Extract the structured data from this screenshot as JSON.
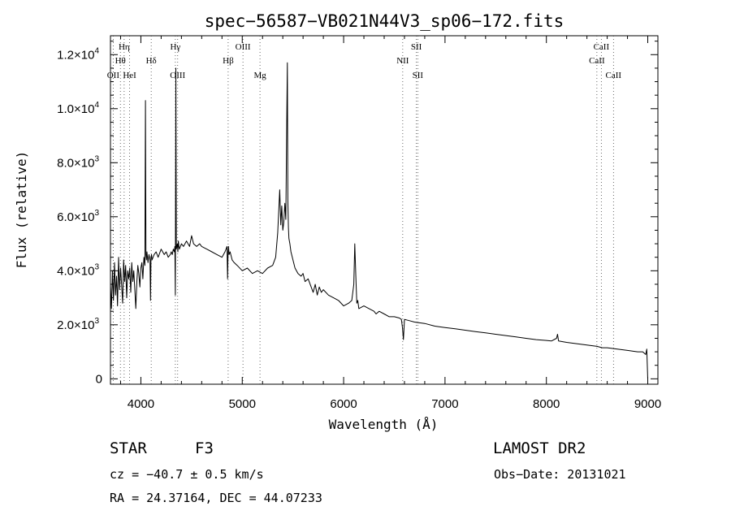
{
  "chart_data": {
    "type": "line",
    "title": "spec−56587−VB021N44V3_sp06−172.fits",
    "xlabel": "Wavelength (Å)",
    "ylabel": "Flux (relative)",
    "xlim": [
      3700,
      9100
    ],
    "ylim": [
      -200,
      12700
    ],
    "x_ticks": [
      4000,
      5000,
      6000,
      7000,
      8000,
      9000
    ],
    "y_ticks": [
      {
        "value": 0,
        "mant": "0",
        "exp": ""
      },
      {
        "value": 2000,
        "mant": "2.0×10",
        "exp": "3"
      },
      {
        "value": 4000,
        "mant": "4.0×10",
        "exp": "3"
      },
      {
        "value": 6000,
        "mant": "6.0×10",
        "exp": "3"
      },
      {
        "value": 8000,
        "mant": "8.0×10",
        "exp": "3"
      },
      {
        "value": 10000,
        "mant": "1.0×10",
        "exp": "4"
      },
      {
        "value": 12000,
        "mant": "1.2×10",
        "exp": "4"
      }
    ],
    "grid": false,
    "spectral_lines": [
      {
        "name": "OII",
        "x": 3727,
        "row": 3
      },
      {
        "name": "Hη",
        "x": 3835,
        "row": 1
      },
      {
        "name": "Hθ",
        "x": 3798,
        "row": 2
      },
      {
        "name": "HeI",
        "x": 3889,
        "row": 3
      },
      {
        "name": "Hδ",
        "x": 4102,
        "row": 2
      },
      {
        "name": "Hγ",
        "x": 4340,
        "row": 1
      },
      {
        "name": "OIII",
        "x": 4363,
        "row": 3
      },
      {
        "name": "Hβ",
        "x": 4861,
        "row": 2
      },
      {
        "name": "OIII",
        "x": 5007,
        "row": 1
      },
      {
        "name": "Mg",
        "x": 5175,
        "row": 3
      },
      {
        "name": "SII",
        "x": 6717,
        "row": 1
      },
      {
        "name": "NII",
        "x": 6583,
        "row": 2
      },
      {
        "name": "SII",
        "x": 6731,
        "row": 3
      },
      {
        "name": "CaII",
        "x": 8542,
        "row": 1
      },
      {
        "name": "CaII",
        "x": 8498,
        "row": 2
      },
      {
        "name": "CaII",
        "x": 8662,
        "row": 3
      }
    ],
    "series": [
      {
        "x": [
          3700,
          3710,
          3720,
          3730,
          3740,
          3750,
          3760,
          3770,
          3780,
          3790,
          3800,
          3810,
          3820,
          3830,
          3840,
          3850,
          3860,
          3870,
          3880,
          3890,
          3900,
          3910,
          3920,
          3930,
          3940,
          3950,
          3960,
          3970,
          3980,
          3990,
          4000,
          4010,
          4020,
          4030,
          4040,
          4045,
          4050,
          4055,
          4060,
          4070,
          4080,
          4090,
          4095,
          4100,
          4105,
          4110,
          4130,
          4150,
          4170,
          4200,
          4230,
          4250,
          4270,
          4290,
          4300,
          4310,
          4320,
          4330,
          4335,
          4340,
          4345,
          4350,
          4360,
          4365,
          4370,
          4375,
          4380,
          4400,
          4420,
          4450,
          4480,
          4500,
          4520,
          4550,
          4580,
          4600,
          4650,
          4700,
          4750,
          4800,
          4830,
          4850,
          4855,
          4860,
          4865,
          4870,
          4880,
          4900,
          4920,
          4950,
          5000,
          5050,
          5100,
          5150,
          5200,
          5250,
          5300,
          5330,
          5350,
          5370,
          5380,
          5390,
          5400,
          5410,
          5420,
          5430,
          5440,
          5445,
          5450,
          5455,
          5460,
          5470,
          5480,
          5500,
          5520,
          5550,
          5580,
          5600,
          5620,
          5650,
          5680,
          5700,
          5720,
          5740,
          5760,
          5780,
          5800,
          5850,
          5900,
          5950,
          6000,
          6050,
          6080,
          6100,
          6110,
          6120,
          6125,
          6130,
          6140,
          6150,
          6200,
          6250,
          6300,
          6320,
          6350,
          6400,
          6450,
          6500,
          6550,
          6570,
          6580,
          6590,
          6600,
          6650,
          6700,
          6800,
          6900,
          7000,
          7100,
          7200,
          7300,
          7400,
          7500,
          7600,
          7700,
          7800,
          7900,
          8000,
          8050,
          8100,
          8110,
          8120,
          8200,
          8300,
          8400,
          8500,
          8550,
          8600,
          8700,
          8800,
          8900,
          8950,
          8980,
          8990,
          9000
        ],
        "y": [
          3500,
          2600,
          4000,
          2900,
          4300,
          3100,
          3800,
          2700,
          4500,
          3300,
          4100,
          3500,
          2800,
          4400,
          3600,
          4200,
          3000,
          4000,
          3700,
          4100,
          3200,
          4300,
          3600,
          4000,
          3300,
          2600,
          3600,
          4200,
          3900,
          3400,
          4100,
          4300,
          3700,
          4500,
          4200,
          10300,
          4600,
          4400,
          4700,
          4300,
          4600,
          4400,
          2900,
          4500,
          4600,
          4400,
          4600,
          4700,
          4500,
          4800,
          4600,
          4700,
          4500,
          4600,
          4700,
          4600,
          4800,
          4700,
          4900,
          3100,
          11500,
          4800,
          5000,
          4700,
          5100,
          4900,
          4800,
          5000,
          4900,
          5100,
          4900,
          5300,
          5000,
          4900,
          5000,
          4900,
          4800,
          4700,
          4600,
          4500,
          4700,
          4900,
          3700,
          4700,
          4900,
          4600,
          4700,
          4400,
          4300,
          4200,
          4000,
          4100,
          3900,
          4000,
          3900,
          4100,
          4200,
          4500,
          5400,
          7000,
          5700,
          6400,
          5500,
          5800,
          6500,
          5900,
          10000,
          11700,
          6600,
          5600,
          5200,
          5000,
          4700,
          4400,
          4100,
          3900,
          3800,
          3900,
          3600,
          3700,
          3400,
          3200,
          3500,
          3100,
          3400,
          3200,
          3300,
          3100,
          3000,
          2900,
          2700,
          2800,
          2900,
          3500,
          5000,
          3800,
          3300,
          2800,
          2900,
          2600,
          2700,
          2600,
          2500,
          2400,
          2500,
          2400,
          2300,
          2300,
          2250,
          2200,
          1900,
          1450,
          2200,
          2150,
          2100,
          2050,
          1950,
          1900,
          1850,
          1800,
          1750,
          1700,
          1650,
          1600,
          1550,
          1500,
          1450,
          1420,
          1400,
          1500,
          1650,
          1400,
          1350,
          1300,
          1250,
          1200,
          1150,
          1150,
          1100,
          1050,
          1000,
          1000,
          900,
          1100,
          0
        ]
      }
    ]
  },
  "info": {
    "class_label": "STAR",
    "subclass": "F3",
    "survey": "LAMOST DR2",
    "cz": "cz = −40.7 ± 0.5 km/s",
    "obs_date": "Obs−Date: 20131021",
    "radec": "RA =  24.37164, DEC =  44.07233"
  }
}
